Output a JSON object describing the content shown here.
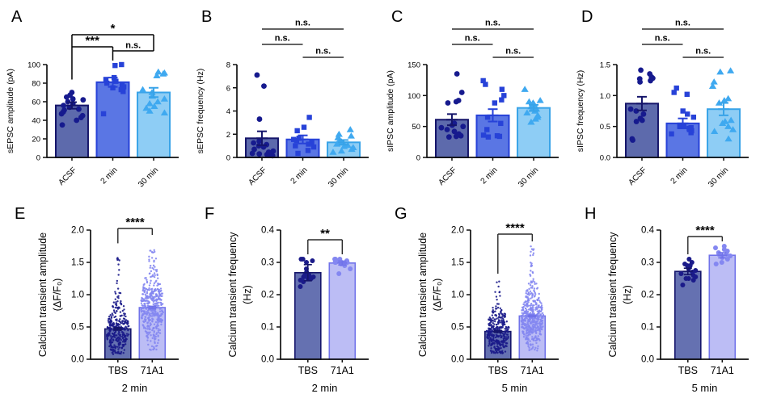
{
  "figure": {
    "background": "#ffffff"
  },
  "colors": {
    "acsf": {
      "fill": "#5d6aac",
      "border": "#15156a",
      "marker": "#161a8e"
    },
    "two_min": {
      "fill": "#5a76e4",
      "border": "#2742d8",
      "marker": "#2742d8"
    },
    "thirty_min": {
      "fill": "#8ecdf5",
      "border": "#38a3e8",
      "marker": "#3fa9f0"
    },
    "tbs": {
      "fill": "#6571b1",
      "border": "#15156a",
      "marker": "#1b1b8a"
    },
    "a71": {
      "fill": "#bcbdf5",
      "border": "#7173ea",
      "marker": "#8487f1"
    },
    "axis": "#111111",
    "sig_line": "#4d4d4d",
    "sig_box": "#000000",
    "text": "#000000"
  },
  "chart_data": {
    "type": "bar",
    "panels": [
      {
        "letter": "A",
        "row": 0,
        "col": 0,
        "ylabel": "sEPSC amplitude (pA)",
        "ylim": [
          0,
          100
        ],
        "yticks": [
          0,
          20,
          40,
          60,
          80,
          100
        ],
        "ytick_decimals": 0,
        "categories": [
          "ACSF",
          "2 min",
          "30 min"
        ],
        "series": [
          "acsf",
          "two_min",
          "thirty_min"
        ],
        "shapes": [
          "circle",
          "square",
          "triangle"
        ],
        "means": [
          56,
          81,
          70
        ],
        "sem": [
          3.5,
          5,
          5
        ],
        "points": [
          [
            35,
            40,
            43,
            45,
            47,
            49,
            51,
            52,
            54,
            56,
            58,
            60,
            62,
            63,
            65,
            67,
            70
          ],
          [
            47,
            71,
            73,
            75,
            76,
            78,
            80,
            82,
            84,
            86,
            99,
            100
          ],
          [
            48,
            50,
            53,
            55,
            58,
            60,
            63,
            66,
            70,
            73,
            88,
            90,
            91,
            92
          ]
        ],
        "sig_style": "boxed",
        "sig": [
          {
            "a": 0,
            "b": 2,
            "label": "*"
          },
          {
            "a": 0,
            "b": 1,
            "label": "***"
          },
          {
            "a": 1,
            "b": 2,
            "label": "n.s."
          }
        ]
      },
      {
        "letter": "B",
        "row": 0,
        "col": 1,
        "ylabel": "sEPSC frequency (Hz)",
        "ylim": [
          0,
          8
        ],
        "yticks": [
          0,
          2,
          4,
          6,
          8
        ],
        "ytick_decimals": 0,
        "categories": [
          "ACSF",
          "2 min",
          "30 min"
        ],
        "series": [
          "acsf",
          "two_min",
          "thirty_min"
        ],
        "shapes": [
          "circle",
          "square",
          "triangle"
        ],
        "means": [
          1.65,
          1.55,
          1.3
        ],
        "sem": [
          0.6,
          0.35,
          0.2
        ],
        "points": [
          [
            0.15,
            0.2,
            0.25,
            0.3,
            0.35,
            0.45,
            0.55,
            0.7,
            0.9,
            1.0,
            1.1,
            1.25,
            1.4,
            3.3,
            6.15,
            7.1
          ],
          [
            0.35,
            0.6,
            0.9,
            1.0,
            1.15,
            1.3,
            1.45,
            1.55,
            1.65,
            2.3,
            2.6,
            3.45
          ],
          [
            0.45,
            0.55,
            0.7,
            0.85,
            0.95,
            1.05,
            1.15,
            1.25,
            1.35,
            1.5,
            1.7,
            1.85,
            2.0,
            2.4
          ]
        ],
        "sig_style": "lines",
        "sig": [
          {
            "a": 0,
            "b": 2,
            "label": "n.s."
          },
          {
            "a": 0,
            "b": 1,
            "label": "n.s."
          },
          {
            "a": 1,
            "b": 2,
            "label": "n.s."
          }
        ]
      },
      {
        "letter": "C",
        "row": 0,
        "col": 2,
        "ylabel": "sIPSC amplitude (pA)",
        "ylim": [
          0,
          150
        ],
        "yticks": [
          0,
          50,
          100,
          150
        ],
        "ytick_decimals": 0,
        "categories": [
          "ACSF",
          "2 min",
          "30 min"
        ],
        "series": [
          "acsf",
          "two_min",
          "thirty_min"
        ],
        "shapes": [
          "circle",
          "square",
          "triangle"
        ],
        "means": [
          61,
          68,
          80
        ],
        "sem": [
          9,
          10,
          5
        ],
        "points": [
          [
            33,
            34,
            35,
            36,
            38,
            42,
            45,
            48,
            50,
            52,
            55,
            88,
            90,
            92,
            105,
            135
          ],
          [
            33,
            34,
            35,
            36,
            45,
            55,
            65,
            88,
            93,
            100,
            110,
            118,
            124
          ],
          [
            57,
            62,
            65,
            68,
            72,
            75,
            78,
            80,
            82,
            84,
            86,
            88,
            90,
            92,
            110
          ]
        ],
        "sig_style": "lines",
        "sig": [
          {
            "a": 0,
            "b": 2,
            "label": "n.s."
          },
          {
            "a": 0,
            "b": 1,
            "label": "n.s."
          },
          {
            "a": 1,
            "b": 2,
            "label": "n.s."
          }
        ]
      },
      {
        "letter": "D",
        "row": 0,
        "col": 3,
        "ylabel": "sIPSC frequency (Hz)",
        "ylim": [
          0,
          1.5
        ],
        "yticks": [
          0,
          0.5,
          1.0,
          1.5
        ],
        "ytick_decimals": 1,
        "categories": [
          "ACSF",
          "2 min",
          "30 min"
        ],
        "series": [
          "acsf",
          "two_min",
          "thirty_min"
        ],
        "shapes": [
          "circle",
          "square",
          "triangle"
        ],
        "means": [
          0.87,
          0.55,
          0.78
        ],
        "sem": [
          0.11,
          0.08,
          0.1
        ],
        "points": [
          [
            0.28,
            0.3,
            0.58,
            0.6,
            0.63,
            0.7,
            0.75,
            0.78,
            1.22,
            1.24,
            1.27,
            1.28,
            1.3,
            1.35,
            1.41
          ],
          [
            0.38,
            0.4,
            0.43,
            0.45,
            0.47,
            0.48,
            0.5,
            0.52,
            0.65,
            0.7,
            0.75,
            1.02,
            1.05,
            1.12
          ],
          [
            0.3,
            0.42,
            0.45,
            0.5,
            0.55,
            0.58,
            0.6,
            0.88,
            0.92,
            0.95,
            1.15,
            1.22,
            1.38,
            1.4
          ]
        ],
        "sig_style": "lines",
        "sig": [
          {
            "a": 0,
            "b": 2,
            "label": "n.s."
          },
          {
            "a": 0,
            "b": 1,
            "label": "n.s."
          },
          {
            "a": 1,
            "b": 2,
            "label": "n.s."
          }
        ]
      },
      {
        "letter": "E",
        "row": 1,
        "col": 0,
        "ylabel": "Calcium transient amplitude",
        "ylabel2": "(ΔF/F₀)",
        "ylim": [
          0,
          2
        ],
        "yticks": [
          0,
          0.5,
          1.0,
          1.5,
          2.0
        ],
        "ytick_decimals": 1,
        "categories": [
          "TBS",
          "71A1"
        ],
        "series": [
          "tbs",
          "a71"
        ],
        "shapes": [
          "dot",
          "dot"
        ],
        "means": [
          0.47,
          0.8
        ],
        "sem": [
          0.02,
          0.02
        ],
        "dense": [
          {
            "n": 330,
            "center": 0.44,
            "sd": 0.2,
            "min": 0.07,
            "max": 1.72
          },
          {
            "n": 440,
            "center": 0.8,
            "sd": 0.28,
            "min": 0.12,
            "max": 1.85
          }
        ],
        "sig_style": "bracket",
        "sig_y": 48,
        "sig": [
          {
            "a": 0,
            "b": 1,
            "label": "****"
          }
        ],
        "sublabel": "2 min"
      },
      {
        "letter": "F",
        "row": 1,
        "col": 1,
        "ylabel": "Calcium transient frequency",
        "ylabel2": "(Hz)",
        "ylim": [
          0,
          0.4
        ],
        "yticks": [
          0,
          0.1,
          0.2,
          0.3,
          0.4
        ],
        "ytick_decimals": 1,
        "categories": [
          "TBS",
          "71A1"
        ],
        "series": [
          "tbs",
          "a71"
        ],
        "shapes": [
          "circle",
          "circle"
        ],
        "means": [
          0.268,
          0.298
        ],
        "sem": [
          0.025,
          0.006
        ],
        "points": [
          [
            0.225,
            0.24,
            0.245,
            0.25,
            0.25,
            0.255,
            0.255,
            0.26,
            0.26,
            0.27,
            0.28,
            0.3,
            0.305,
            0.31,
            0.31
          ],
          [
            0.265,
            0.28,
            0.29,
            0.295,
            0.295,
            0.3,
            0.3,
            0.3,
            0.3,
            0.305,
            0.305,
            0.31,
            0.31,
            0.31
          ]
        ],
        "sig_style": "bracket",
        "sig_y": 62,
        "sig": [
          {
            "a": 0,
            "b": 1,
            "label": "**"
          }
        ],
        "sublabel": "2 min"
      },
      {
        "letter": "G",
        "row": 1,
        "col": 2,
        "ylabel": "Calcium transient amplitude",
        "ylabel2": "(ΔF/F₀)",
        "ylim": [
          0,
          2
        ],
        "yticks": [
          0,
          0.5,
          1.0,
          1.5,
          2.0
        ],
        "ytick_decimals": 1,
        "categories": [
          "TBS",
          "71A1"
        ],
        "series": [
          "tbs",
          "a71"
        ],
        "shapes": [
          "dot",
          "dot"
        ],
        "means": [
          0.43,
          0.67
        ],
        "sem": [
          0.015,
          0.015
        ],
        "dense": [
          {
            "n": 340,
            "center": 0.41,
            "sd": 0.19,
            "min": 0.09,
            "max": 1.25
          },
          {
            "n": 470,
            "center": 0.63,
            "sd": 0.22,
            "min": 0.12,
            "max": 1.75
          }
        ],
        "sig_style": "bracket",
        "sig_y": 55,
        "sig": [
          {
            "a": 0,
            "b": 1,
            "label": "****"
          }
        ],
        "sublabel": "5 min"
      },
      {
        "letter": "H",
        "row": 1,
        "col": 3,
        "ylabel": "Calcium transient frequency",
        "ylabel2": "(Hz)",
        "ylim": [
          0,
          0.4
        ],
        "yticks": [
          0,
          0.1,
          0.2,
          0.3,
          0.4
        ],
        "ytick_decimals": 1,
        "categories": [
          "TBS",
          "71A1"
        ],
        "series": [
          "tbs",
          "a71"
        ],
        "shapes": [
          "circle",
          "circle"
        ],
        "means": [
          0.272,
          0.322
        ],
        "sem": [
          0.01,
          0.008
        ],
        "points": [
          [
            0.23,
            0.245,
            0.25,
            0.25,
            0.255,
            0.26,
            0.265,
            0.27,
            0.275,
            0.28,
            0.29,
            0.29,
            0.295,
            0.3,
            0.31
          ],
          [
            0.295,
            0.3,
            0.31,
            0.315,
            0.32,
            0.32,
            0.325,
            0.325,
            0.33,
            0.335,
            0.34,
            0.345,
            0.35
          ]
        ],
        "sig_style": "bracket",
        "sig_y": 58,
        "sig": [
          {
            "a": 0,
            "b": 1,
            "label": "****"
          }
        ],
        "sublabel": "5 min"
      }
    ]
  }
}
